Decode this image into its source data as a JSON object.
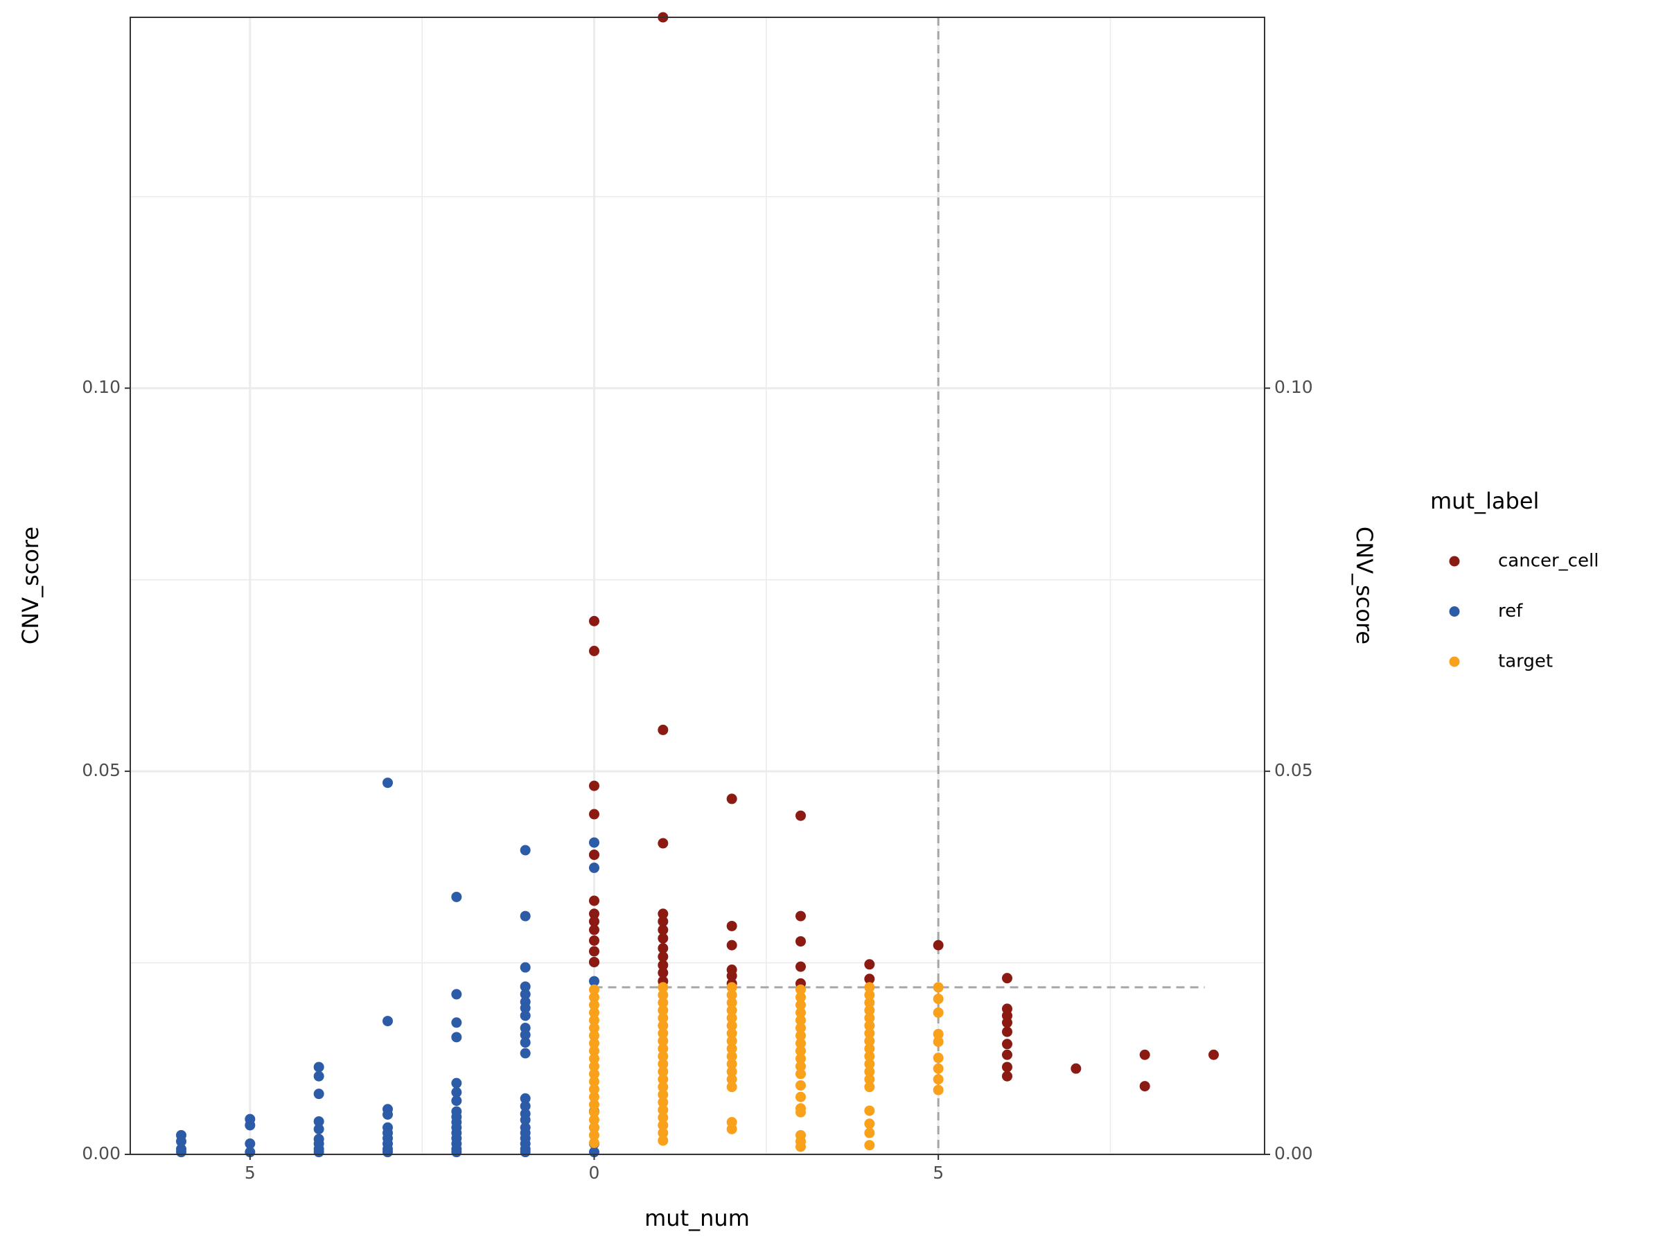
{
  "chart_data": {
    "type": "scatter",
    "x_label": "mut_num",
    "y_label": "CNV_score",
    "y2_label": "CNV_score",
    "legend_title": "mut_label",
    "legend_position": "right",
    "grid": true,
    "xlim": [
      -6.74,
      9.74
    ],
    "xticks": [
      {
        "value": -5,
        "label": "5"
      },
      0,
      5
    ],
    "xminor": [
      -2.5,
      2.5,
      7.5
    ],
    "ylim": [
      0,
      0.1484
    ],
    "yticks": [
      {
        "value": 0,
        "label": "0.00"
      },
      {
        "value": 0.05,
        "label": "0.05"
      },
      {
        "value": 0.1,
        "label": "0.10"
      }
    ],
    "yminor": [
      0.025,
      0.075,
      0.125
    ],
    "y2lim": [
      0,
      0.1484
    ],
    "y2ticks": [
      {
        "value": 0,
        "label": "0.00"
      },
      {
        "value": 0.05,
        "label": "0.05"
      },
      {
        "value": 0.1,
        "label": "0.10"
      }
    ],
    "vline": 5,
    "hline": {
      "y": 0.0218,
      "x": [
        0,
        8.87
      ]
    },
    "series": [
      {
        "name": "ref",
        "color": "#2c5ba8",
        "x": [
          -6,
          -6,
          -6,
          -6,
          -5,
          -5,
          -5,
          -5,
          -4,
          -4,
          -4,
          -4,
          -4,
          -4,
          -4,
          -4,
          -4,
          -3,
          -3,
          -3,
          -3,
          -3,
          -3,
          -3,
          -3,
          -3,
          -3,
          -2,
          -2,
          -2,
          -2,
          -2,
          -2,
          -2,
          -2,
          -2,
          -2,
          -2,
          -2,
          -2,
          -2,
          -2,
          -2,
          -1,
          -1,
          -1,
          -1,
          -1,
          -1,
          -1,
          -1,
          -1,
          -1,
          -1,
          -1,
          -1,
          -1,
          -1,
          -1,
          -1,
          -1,
          -1,
          -1,
          -1,
          -1,
          0,
          0,
          0,
          0,
          0,
          0,
          0,
          0,
          0
        ],
        "values": [
          0.0025,
          0.0017,
          0.0007,
          0.0003,
          0.0046,
          0.0038,
          0.0014,
          0.0003,
          0.0114,
          0.0102,
          0.0079,
          0.0043,
          0.0033,
          0.002,
          0.0014,
          0.0007,
          0.0003,
          0.0485,
          0.0174,
          0.0059,
          0.0052,
          0.0035,
          0.0028,
          0.0021,
          0.0014,
          0.0007,
          0.0003,
          0.0336,
          0.0209,
          0.0172,
          0.0153,
          0.0093,
          0.0081,
          0.007,
          0.0056,
          0.0049,
          0.0042,
          0.0035,
          0.0028,
          0.0021,
          0.0014,
          0.0007,
          0.0003,
          0.0397,
          0.0311,
          0.0244,
          0.0219,
          0.0209,
          0.0199,
          0.0191,
          0.0181,
          0.0165,
          0.0156,
          0.0146,
          0.0132,
          0.0073,
          0.0063,
          0.0053,
          0.0045,
          0.0035,
          0.0028,
          0.0021,
          0.0014,
          0.0007,
          0.0003,
          0.0407,
          0.0391,
          0.0374,
          0.0251,
          0.0226,
          0.0056,
          0.0035,
          0.0014,
          0.0003
        ]
      },
      {
        "name": "cancer_cell",
        "color": "#8b1a12",
        "x": [
          0,
          0,
          0,
          0,
          0,
          0,
          0,
          0,
          0,
          0,
          0,
          0,
          1,
          1,
          1,
          1,
          1,
          1,
          1,
          1,
          1,
          1,
          1,
          1,
          2,
          2,
          2,
          2,
          2,
          2,
          3,
          3,
          3,
          3,
          3,
          4,
          4,
          5,
          6,
          6,
          6,
          6,
          6,
          6,
          6,
          6,
          6,
          7,
          8,
          8,
          9
        ],
        "values": [
          0.0696,
          0.0657,
          0.0481,
          0.0444,
          0.0391,
          0.0331,
          0.0314,
          0.0304,
          0.0293,
          0.0279,
          0.0265,
          0.0251,
          0.1484,
          0.0554,
          0.0406,
          0.0314,
          0.0304,
          0.0293,
          0.0282,
          0.0269,
          0.0258,
          0.0247,
          0.0237,
          0.0226,
          0.0464,
          0.0298,
          0.0273,
          0.0241,
          0.0233,
          0.0223,
          0.0442,
          0.0311,
          0.0278,
          0.0245,
          0.0223,
          0.0248,
          0.0229,
          0.0273,
          0.023,
          0.019,
          0.0181,
          0.0172,
          0.016,
          0.0144,
          0.013,
          0.0114,
          0.0102,
          0.0112,
          0.013,
          0.0089,
          0.013
        ]
      },
      {
        "name": "target",
        "color": "#f9a11b",
        "x": [
          0,
          0,
          0,
          0,
          0,
          0,
          0,
          0,
          0,
          0,
          0,
          0,
          0,
          0,
          0,
          0,
          0,
          0,
          0,
          0,
          0,
          1,
          1,
          1,
          1,
          1,
          1,
          1,
          1,
          1,
          1,
          1,
          1,
          1,
          1,
          1,
          1,
          1,
          1,
          1,
          1,
          1,
          2,
          2,
          2,
          2,
          2,
          2,
          2,
          2,
          2,
          2,
          2,
          2,
          2,
          2,
          2,
          2,
          3,
          3,
          3,
          3,
          3,
          3,
          3,
          3,
          3,
          3,
          3,
          3,
          3,
          3,
          3,
          3,
          3,
          3,
          3,
          4,
          4,
          4,
          4,
          4,
          4,
          4,
          4,
          4,
          4,
          4,
          4,
          4,
          4,
          4,
          4,
          4,
          4,
          5,
          5,
          5,
          5,
          5,
          5,
          5,
          5,
          5
        ],
        "values": [
          0.0215,
          0.0205,
          0.0195,
          0.0185,
          0.0175,
          0.0165,
          0.0155,
          0.0145,
          0.0135,
          0.0125,
          0.0115,
          0.0105,
          0.0095,
          0.0085,
          0.0075,
          0.0065,
          0.0055,
          0.0045,
          0.0035,
          0.0025,
          0.0015,
          0.0218,
          0.0208,
          0.0198,
          0.0188,
          0.0178,
          0.0168,
          0.0158,
          0.0148,
          0.0138,
          0.0128,
          0.0118,
          0.0108,
          0.0098,
          0.0088,
          0.0078,
          0.0068,
          0.0058,
          0.0048,
          0.0038,
          0.0028,
          0.0018,
          0.0218,
          0.0208,
          0.0198,
          0.0188,
          0.0178,
          0.0168,
          0.0158,
          0.0148,
          0.0138,
          0.0128,
          0.0118,
          0.0108,
          0.0098,
          0.0088,
          0.0042,
          0.0033,
          0.0215,
          0.0205,
          0.0195,
          0.0185,
          0.0175,
          0.0165,
          0.0155,
          0.0145,
          0.0135,
          0.0125,
          0.0115,
          0.0105,
          0.009,
          0.0075,
          0.006,
          0.0055,
          0.0025,
          0.0017,
          0.001,
          0.0218,
          0.0208,
          0.0198,
          0.0188,
          0.0178,
          0.0168,
          0.0158,
          0.0148,
          0.0138,
          0.0128,
          0.0118,
          0.0108,
          0.0098,
          0.0088,
          0.0057,
          0.004,
          0.0028,
          0.0012,
          0.0218,
          0.0203,
          0.0185,
          0.0157,
          0.0147,
          0.0126,
          0.0112,
          0.0098,
          0.0084
        ]
      }
    ],
    "legend_order": [
      1,
      0,
      2
    ]
  }
}
